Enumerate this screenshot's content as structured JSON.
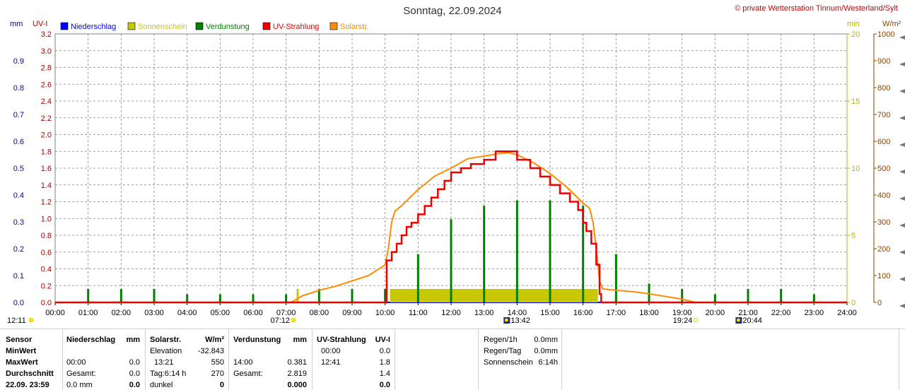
{
  "title": "Sonntag, 22.09.2024",
  "copyright": "© private Wetterstation Tinnum/Westerland/Sylt",
  "units": {
    "mm": "mm",
    "uvi": "UV-I",
    "min": "min",
    "wm2": "W/m²"
  },
  "colors": {
    "niederschlag": "#0000ff",
    "sonnenschein": "#c8c800",
    "verdunstung": "#008000",
    "uv": "#ee0000",
    "solar": "#ff8c00",
    "uvAxis": "#aa0000",
    "mmAxis": "#0000aa",
    "minAxis": "#b5b500",
    "wAxis": "#884400",
    "grid": "#808080"
  },
  "legend": [
    {
      "key": "niederschlag",
      "label": "Niederschlag"
    },
    {
      "key": "sonnenschein",
      "label": "Sonnenschein"
    },
    {
      "key": "verdunstung",
      "label": "Verdunstung"
    },
    {
      "key": "uv",
      "label": "UV-Strahlung"
    },
    {
      "key": "solar",
      "label": "Solarstr."
    }
  ],
  "chart_data": {
    "type": "line",
    "x_range": [
      "00:00",
      "24:00"
    ],
    "x_ticks": [
      "00:00",
      "01:00",
      "02:00",
      "03:00",
      "04:00",
      "05:00",
      "06:00",
      "07:00",
      "08:00",
      "09:00",
      "10:00",
      "11:00",
      "12:00",
      "13:00",
      "14:00",
      "15:00",
      "16:00",
      "17:00",
      "18:00",
      "19:00",
      "20:00",
      "21:00",
      "22:00",
      "23:00",
      "24:00"
    ],
    "axes": {
      "mm": {
        "range": [
          0,
          1.0
        ],
        "ticks": [
          "0.0",
          "0.1",
          "0.2",
          "0.3",
          "0.4",
          "0.5",
          "0.6",
          "0.7",
          "0.8",
          "0.9"
        ],
        "tick_values": [
          0,
          0.1,
          0.2,
          0.3,
          0.4,
          0.5,
          0.6,
          0.7,
          0.8,
          0.9
        ]
      },
      "uvi": {
        "range": [
          0,
          3.2
        ],
        "ticks": [
          "0.0",
          "0.2",
          "0.4",
          "0.6",
          "0.8",
          "1.0",
          "1.2",
          "1.4",
          "1.6",
          "1.8",
          "2.0",
          "2.2",
          "2.4",
          "2.6",
          "2.8",
          "3.0",
          "3.2"
        ],
        "tick_values": [
          0,
          0.2,
          0.4,
          0.6,
          0.8,
          1.0,
          1.2,
          1.4,
          1.6,
          1.8,
          2.0,
          2.2,
          2.4,
          2.6,
          2.8,
          3.0,
          3.2
        ]
      },
      "min": {
        "range": [
          0,
          20
        ],
        "ticks": [
          "0",
          "5",
          "10",
          "15",
          "20"
        ],
        "tick_values": [
          0,
          5,
          10,
          15,
          20
        ]
      },
      "wm2": {
        "range": [
          0,
          1000
        ],
        "ticks": [
          "0",
          "100",
          "200",
          "300",
          "400",
          "500",
          "600",
          "700",
          "800",
          "900",
          "1000"
        ],
        "tick_values": [
          0,
          100,
          200,
          300,
          400,
          500,
          600,
          700,
          800,
          900,
          1000
        ]
      }
    },
    "series": [
      {
        "name": "UV-Strahlung",
        "axis": "uvi",
        "step": true,
        "x": [
          0,
          10.0,
          10.05,
          10.2,
          10.35,
          10.5,
          10.65,
          10.8,
          11.0,
          11.2,
          11.4,
          11.6,
          11.8,
          12.0,
          12.3,
          12.6,
          13.0,
          13.35,
          13.7,
          14.0,
          14.4,
          14.7,
          15.0,
          15.3,
          15.6,
          15.85,
          16.0,
          16.1,
          16.25,
          16.4,
          16.5,
          16.55,
          24
        ],
        "y": [
          0.0,
          0.0,
          0.5,
          0.6,
          0.7,
          0.8,
          0.9,
          0.95,
          1.05,
          1.15,
          1.25,
          1.35,
          1.45,
          1.55,
          1.6,
          1.65,
          1.7,
          1.8,
          1.8,
          1.7,
          1.6,
          1.5,
          1.4,
          1.3,
          1.2,
          1.1,
          0.95,
          0.85,
          0.7,
          0.45,
          0.1,
          0.0,
          0.0
        ]
      },
      {
        "name": "Solarstr.",
        "axis": "wm2",
        "x": [
          0,
          7.15,
          7.5,
          8.0,
          8.5,
          9.0,
          9.5,
          10.0,
          10.1,
          10.2,
          10.3,
          10.5,
          11.0,
          11.5,
          12.0,
          12.5,
          13.0,
          13.5,
          13.75,
          14.0,
          14.5,
          15.0,
          15.5,
          16.0,
          16.2,
          16.3,
          16.4,
          16.5,
          16.6,
          17.0,
          17.5,
          18.0,
          18.5,
          19.0,
          19.4,
          24
        ],
        "y": [
          0,
          0,
          25,
          45,
          60,
          80,
          100,
          140,
          200,
          300,
          340,
          360,
          420,
          470,
          500,
          535,
          545,
          555,
          557,
          550,
          520,
          480,
          430,
          370,
          350,
          300,
          200,
          80,
          50,
          45,
          40,
          32,
          22,
          12,
          0,
          0
        ]
      },
      {
        "name": "Sonnenschein",
        "axis": "min",
        "bars": [
          {
            "from": 10.15,
            "to": 16.45,
            "value": 1
          },
          {
            "at": 7.35,
            "value": 1
          }
        ]
      },
      {
        "name": "Verdunstung",
        "axis": "mm",
        "hours": [
          1,
          2,
          3,
          4,
          5,
          6,
          7,
          8,
          9,
          10,
          11,
          12,
          13,
          14,
          15,
          16,
          17,
          18,
          19,
          20,
          21,
          22,
          23
        ],
        "values": [
          0.05,
          0.05,
          0.05,
          0.03,
          0.03,
          0.03,
          0.03,
          0.05,
          0.05,
          0.05,
          0.18,
          0.31,
          0.36,
          0.38,
          0.38,
          0.36,
          0.18,
          0.07,
          0.05,
          0.03,
          0.05,
          0.05,
          0.03
        ]
      },
      {
        "name": "Niederschlag",
        "axis": "mm",
        "values": []
      }
    ],
    "markers": [
      {
        "label": "12:11",
        "x": 0.0,
        "row": 1,
        "icon": "sun-dot"
      },
      {
        "label": "07:12",
        "x": 7.2,
        "row": 1,
        "icon": "sun-dot",
        "left": true
      },
      {
        "label": "13:42",
        "x": 13.7,
        "row": 1,
        "icon": "moon-flag"
      },
      {
        "label": "19:24",
        "x": 19.4,
        "row": 1,
        "icon": "sun-set",
        "left": true
      },
      {
        "label": "20:44",
        "x": 20.73,
        "row": 1,
        "icon": "moon-flag"
      }
    ]
  },
  "stats": {
    "rows": [
      "Sensor",
      "MinWert",
      "MaxWert",
      "Durchschnitt",
      "22.09.  23:59"
    ],
    "niederschlag": {
      "header": "Niederschlag",
      "unit": "mm",
      "c1": [
        "",
        "00:00",
        "Gesamt:",
        "0.0 mm"
      ],
      "c2": [
        "",
        "0.0",
        "0.0",
        "0.0"
      ]
    },
    "solar": {
      "header": "Solarstr.",
      "unit": "W/m²",
      "c1": [
        "Elevation",
        "13:21",
        "Tag:6:14 h",
        "dunkel"
      ],
      "c2": [
        "-32.843",
        "550",
        "270",
        "0"
      ]
    },
    "verdunstung": {
      "header": "Verdunstung",
      "unit": "mm",
      "c1": [
        "",
        "14:00",
        "Gesamt:",
        ""
      ],
      "c2": [
        "",
        "0.381",
        "2.819",
        "0.000"
      ]
    },
    "uv": {
      "header": "UV-Strahlung",
      "unit": "UV-I",
      "c1": [
        "00:00",
        "12:41",
        "",
        ""
      ],
      "c2": [
        "0.0",
        "1.8",
        "1.4",
        "0.0"
      ]
    },
    "extra": {
      "labels": [
        "Regen/1h",
        "Regen/Tag",
        "Sonnenschein"
      ],
      "values": [
        "0.0mm",
        "0.0mm",
        "6:14h"
      ]
    }
  }
}
